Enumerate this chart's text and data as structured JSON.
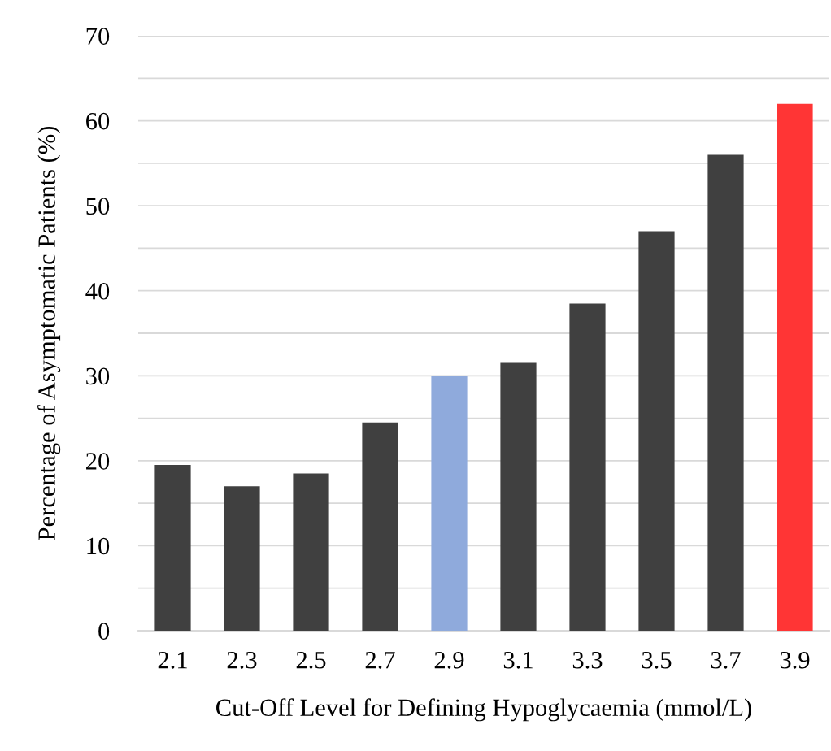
{
  "chart_data": {
    "type": "bar",
    "xlabel": "Cut-Off Level for Defining Hypoglycaemia (mmol/L)",
    "ylabel": "Percentage of Asymptomatic Patients (%)",
    "categories": [
      "2.1",
      "2.3",
      "2.5",
      "2.7",
      "2.9",
      "3.1",
      "3.3",
      "3.5",
      "3.7",
      "3.9"
    ],
    "values": [
      19.5,
      17,
      18.5,
      24.5,
      30,
      31.5,
      38.5,
      47,
      56,
      62
    ],
    "colors": [
      "#404040",
      "#404040",
      "#404040",
      "#404040",
      "#8faadc",
      "#404040",
      "#404040",
      "#404040",
      "#404040",
      "#ff3535"
    ],
    "ylim": [
      0,
      70
    ],
    "yticks": [
      0,
      {
        "value": 5,
        "label": null
      },
      10,
      {
        "value": 15,
        "label": null
      },
      20,
      {
        "value": 25,
        "label": null
      },
      30,
      {
        "value": 35,
        "label": null
      },
      40,
      {
        "value": 45,
        "label": null
      },
      50,
      {
        "value": 55,
        "label": null
      },
      60,
      {
        "value": 65,
        "label": null
      },
      70
    ],
    "grid": "y"
  }
}
